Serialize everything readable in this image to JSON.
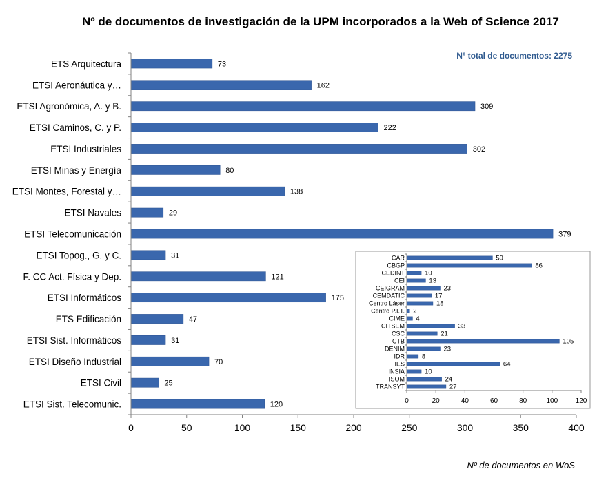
{
  "colors": {
    "bar": "#3a67ad",
    "bar_stroke": "#2c5291",
    "axis": "#808080",
    "note": "#2f5a8f"
  },
  "total_note": "Nº total  de documentos:  2275",
  "chart_data": [
    {
      "type": "bar",
      "orientation": "horizontal",
      "title": "Nº de documentos de investigación de la UPM incorporados a la Web of Science 2017",
      "xlabel": "Nº de documentos en WoS",
      "ylabel": "",
      "xlim": [
        0,
        400
      ],
      "ticks": [
        0,
        50,
        100,
        150,
        200,
        250,
        300,
        350,
        400
      ],
      "grid": false,
      "categories": [
        "ETS Arquitectura",
        "ETSI Aeronáutica y…",
        "ETSI Agronómica, A. y B.",
        "ETSI Caminos, C. y P.",
        "ETSI Industriales",
        "ETSI Minas y Energía",
        "ETSI Montes, Forestal y…",
        "ETSI Navales",
        "ETSI Telecomunicación",
        "ETSI Topog., G. y C.",
        "F. CC Act. Física y Dep.",
        "ETSI Informáticos",
        "ETS Edificación",
        "ETSI Sist. Informáticos",
        "ETSI Diseño Industrial",
        "ETSI Civil",
        "ETSI Sist. Telecomunic."
      ],
      "values": [
        73,
        162,
        309,
        222,
        302,
        80,
        138,
        29,
        379,
        31,
        121,
        175,
        47,
        31,
        70,
        25,
        120
      ]
    },
    {
      "type": "bar",
      "orientation": "horizontal",
      "title": "",
      "xlabel": "",
      "xlim": [
        0,
        120
      ],
      "ticks": [
        0,
        20,
        40,
        60,
        80,
        100,
        120
      ],
      "grid": false,
      "categories": [
        "CAR",
        "CBGP",
        "CEDINT",
        "CEI",
        "CEIGRAM",
        "CEMDATIC",
        "Centro Láser",
        "Centro P.I.T.",
        "CIME",
        "CITSEM",
        "CSC",
        "CTB",
        "DENIM",
        "IDR",
        "IES",
        "INSIA",
        "ISOM",
        "TRANSYT"
      ],
      "values": [
        59,
        86,
        10,
        13,
        23,
        17,
        18,
        2,
        4,
        33,
        21,
        105,
        23,
        8,
        64,
        10,
        24,
        27
      ]
    }
  ]
}
